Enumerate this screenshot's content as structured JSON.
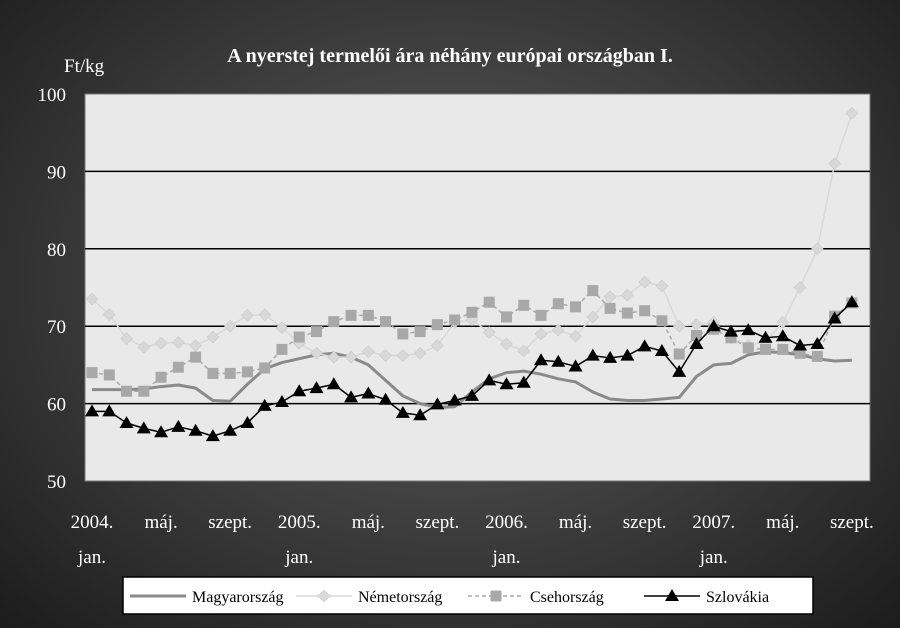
{
  "chart_data": {
    "type": "line",
    "title": "A nyerstej termelői ára néhány európai országban I.",
    "ylabel": "Ft/kg",
    "ylim": [
      50,
      100
    ],
    "yticks": [
      50,
      60,
      70,
      80,
      90,
      100
    ],
    "grid": "horizontal",
    "legend_position": "bottom",
    "x_months": 45,
    "x_start": "2004-01",
    "x_end": "2007-09",
    "xtick_labels": [
      {
        "month": 0,
        "top": "2004.",
        "bottom": "jan."
      },
      {
        "month": 4,
        "top": "máj.",
        "bottom": ""
      },
      {
        "month": 8,
        "top": "szept.",
        "bottom": ""
      },
      {
        "month": 12,
        "top": "2005.",
        "bottom": "jan."
      },
      {
        "month": 16,
        "top": "máj.",
        "bottom": ""
      },
      {
        "month": 20,
        "top": "szept.",
        "bottom": ""
      },
      {
        "month": 24,
        "top": "2006.",
        "bottom": "jan."
      },
      {
        "month": 28,
        "top": "máj.",
        "bottom": ""
      },
      {
        "month": 32,
        "top": "szept.",
        "bottom": ""
      },
      {
        "month": 36,
        "top": "2007.",
        "bottom": "jan."
      },
      {
        "month": 40,
        "top": "máj.",
        "bottom": ""
      },
      {
        "month": 44,
        "top": "szept.",
        "bottom": ""
      }
    ],
    "series": [
      {
        "name": "Magyarország",
        "style": "solid",
        "marker": "none",
        "color": "#8a8a8a",
        "values": [
          61.8,
          61.8,
          61.8,
          61.9,
          62.2,
          62.4,
          62.0,
          60.4,
          60.3,
          62.5,
          64.5,
          65.3,
          65.8,
          66.3,
          66.5,
          66.0,
          65.0,
          63.0,
          61.0,
          60.0,
          59.5,
          59.6,
          61.5,
          63.2,
          64.0,
          64.2,
          63.8,
          63.2,
          62.8,
          61.5,
          60.6,
          60.4,
          60.4,
          60.6,
          60.8,
          63.5,
          65.0,
          65.2,
          66.3,
          66.7,
          66.6,
          66.3,
          65.8,
          65.5,
          65.6
        ]
      },
      {
        "name": "Németország",
        "style": "solid",
        "marker": "diamond",
        "color": "#d8d8d8",
        "values": [
          73.5,
          71.5,
          68.4,
          67.3,
          67.8,
          67.9,
          67.5,
          68.6,
          70.0,
          71.4,
          71.5,
          69.8,
          67.8,
          66.5,
          66.0,
          66.0,
          66.7,
          66.2,
          66.2,
          66.5,
          67.5,
          70.5,
          70.8,
          69.2,
          67.7,
          66.8,
          69.0,
          69.5,
          68.7,
          71.2,
          73.8,
          74.0,
          75.7,
          75.2,
          70.0,
          70.2,
          70.5,
          68.5,
          67.5,
          68.0,
          70.5,
          75.0,
          80.0,
          91.0,
          97.5
        ]
      },
      {
        "name": "Csehország",
        "style": "dashed",
        "marker": "square",
        "color": "#a8a8a8",
        "values": [
          64.0,
          63.7,
          61.6,
          61.6,
          63.4,
          64.7,
          66.0,
          63.9,
          63.9,
          64.1,
          64.6,
          67.0,
          68.6,
          69.3,
          70.6,
          71.4,
          71.4,
          70.6,
          69.0,
          69.3,
          70.2,
          70.8,
          71.8,
          73.1,
          71.2,
          72.7,
          71.4,
          72.9,
          72.5,
          74.6,
          72.3,
          71.7,
          72.0,
          70.7,
          66.4,
          68.8,
          69.6,
          68.5,
          67.2,
          67.0,
          67.0,
          66.5,
          66.1,
          71.3,
          73.0
        ]
      },
      {
        "name": "Szlovákia",
        "style": "solid",
        "marker": "triangle",
        "color": "#000000",
        "values": [
          59.0,
          59.0,
          57.5,
          56.8,
          56.3,
          57.0,
          56.5,
          55.8,
          56.5,
          57.5,
          59.7,
          60.2,
          61.6,
          62.0,
          62.5,
          60.8,
          61.3,
          60.5,
          58.8,
          58.5,
          59.9,
          60.4,
          61.0,
          63.0,
          62.5,
          62.7,
          65.6,
          65.4,
          64.8,
          66.2,
          65.9,
          66.2,
          67.4,
          66.8,
          64.1,
          67.7,
          70.0,
          69.3,
          69.5,
          68.5,
          68.7,
          67.5,
          67.7,
          71.0,
          73.1
        ]
      }
    ]
  }
}
